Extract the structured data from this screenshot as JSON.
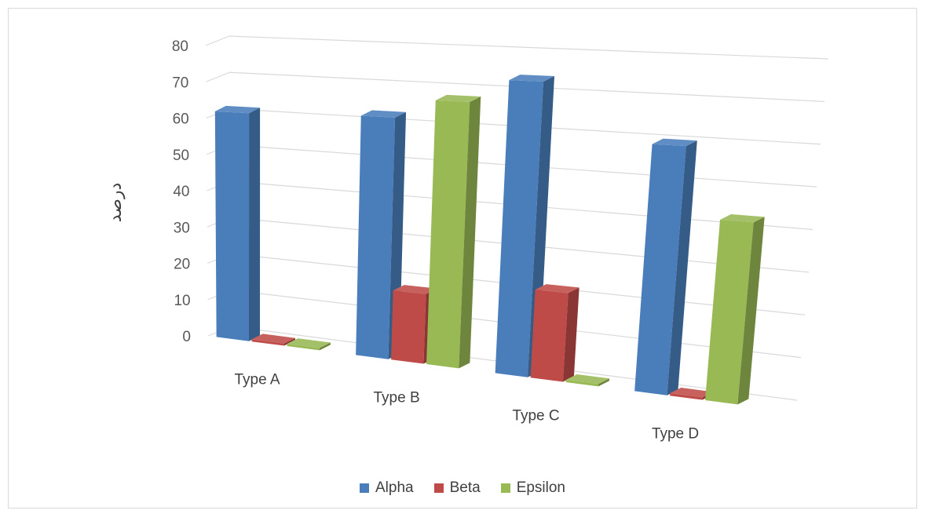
{
  "chart_data": {
    "type": "bar",
    "categories": [
      "Type A",
      "Type B",
      "Type C",
      "Type D"
    ],
    "series": [
      {
        "name": "Alpha",
        "values": [
          62,
          63,
          74,
          60
        ],
        "color": "#4a7ebb"
      },
      {
        "name": "Beta",
        "values": [
          0,
          18,
          22,
          0
        ],
        "color": "#be4b48"
      },
      {
        "name": "Epsilon",
        "values": [
          0,
          68,
          0,
          43
        ],
        "color": "#98b954"
      }
    ],
    "ylabel": "درصد",
    "ylim": [
      0,
      80
    ],
    "yticks": [
      0,
      10,
      20,
      30,
      40,
      50,
      60,
      70,
      80
    ],
    "grid": true,
    "legend_position": "bottom",
    "style": "3d-perspective"
  }
}
